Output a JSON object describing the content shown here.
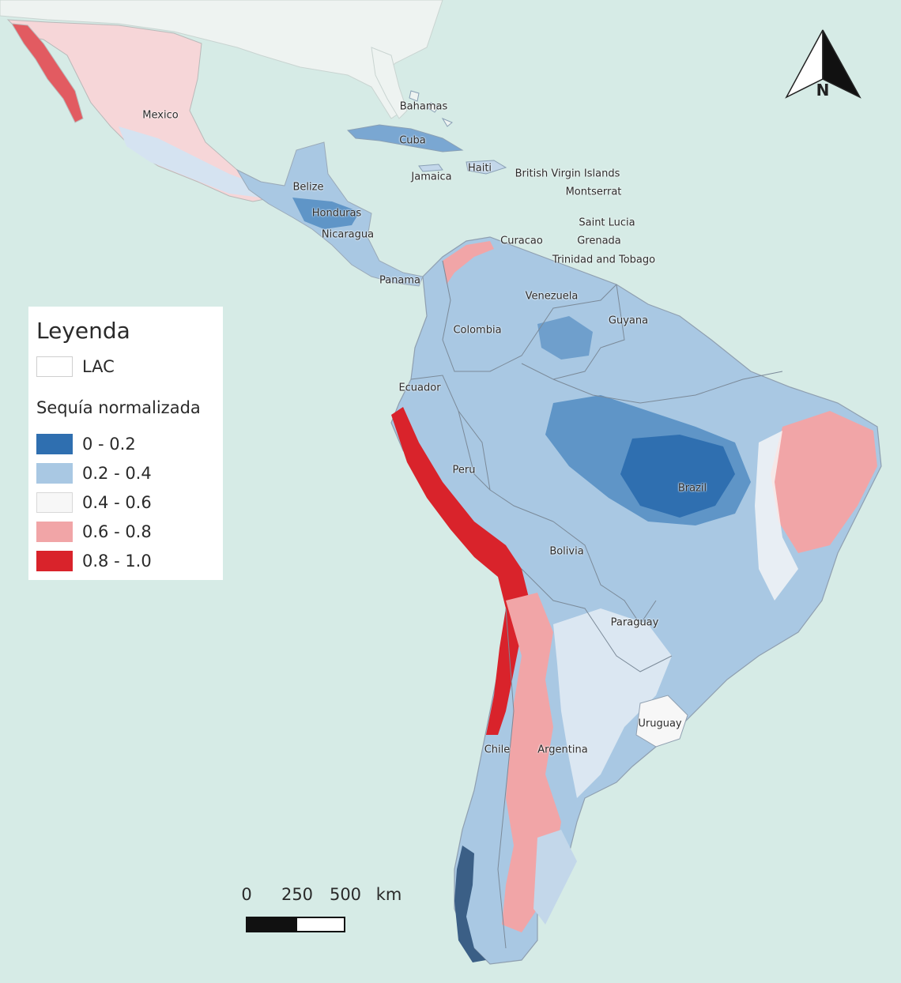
{
  "colors": {
    "ocean": "#d6ebe6",
    "land_na": "#eef3f1",
    "class_0_02": "#2f6fb0",
    "class_02_04": "#a9c8e3",
    "class_04_06": "#f7f7f7",
    "class_06_08": "#f1a5a7",
    "class_08_10": "#d9232b"
  },
  "legend": {
    "title": "Leyenda",
    "lac_label": "LAC",
    "subtitle": "Sequía normalizada",
    "classes": [
      {
        "label": "0 - 0.2",
        "color": "#2f6fb0"
      },
      {
        "label": "0.2 - 0.4",
        "color": "#a9c8e3"
      },
      {
        "label": "0.4 - 0.6",
        "color": "#f7f7f7"
      },
      {
        "label": "0.6 - 0.8",
        "color": "#f1a5a7"
      },
      {
        "label": "0.8 - 1.0",
        "color": "#d9232b"
      }
    ]
  },
  "countries": {
    "mexico": "Mexico",
    "bahamas": "Bahamas",
    "cuba": "Cuba",
    "jamaica": "Jamaica",
    "haiti": "Haiti",
    "bvi": "British Virgin Islands",
    "montserrat": "Montserrat",
    "saint_lucia": "Saint Lucia",
    "grenada": "Grenada",
    "trinidad": "Trinidad and Tobago",
    "curacao": "Curacao",
    "belize": "Belize",
    "honduras": "Honduras",
    "nicaragua": "Nicaragua",
    "panama": "Panama",
    "venezuela": "Venezuela",
    "guyana": "Guyana",
    "colombia": "Colombia",
    "ecuador": "Ecuador",
    "peru": "Peru",
    "brazil": "Brazil",
    "bolivia": "Bolivia",
    "paraguay": "Paraguay",
    "chile": "Chile",
    "argentina": "Argentina",
    "uruguay": "Uruguay"
  },
  "scale_bar": {
    "tick_0": "0",
    "tick_250": "250",
    "tick_500": "500",
    "unit": "km"
  },
  "north_arrow": {
    "label": "N"
  }
}
